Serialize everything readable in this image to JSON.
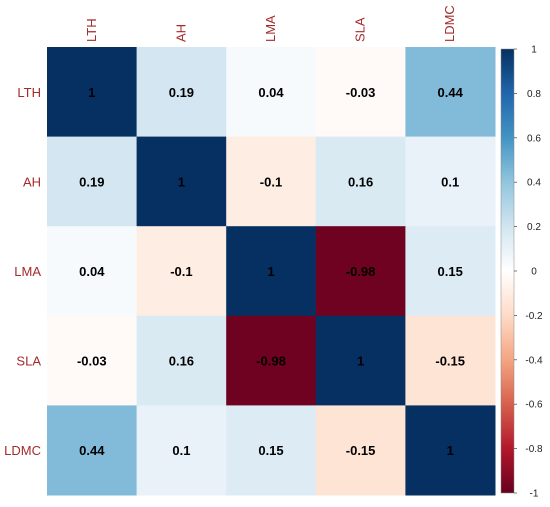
{
  "chart_data": {
    "type": "heatmap",
    "variables": [
      "LTH",
      "AH",
      "LMA",
      "SLA",
      "LDMC"
    ],
    "matrix": [
      [
        1,
        0.19,
        0.04,
        -0.03,
        0.44
      ],
      [
        0.19,
        1,
        -0.1,
        0.16,
        0.1
      ],
      [
        0.04,
        -0.1,
        1,
        -0.98,
        0.15
      ],
      [
        -0.03,
        0.16,
        -0.98,
        1,
        -0.15
      ],
      [
        0.44,
        0.1,
        0.15,
        -0.15,
        1
      ]
    ],
    "cell_labels": [
      [
        "1",
        "0.19",
        "0.04",
        "-0.03",
        "0.44"
      ],
      [
        "0.19",
        "1",
        "-0.1",
        "0.16",
        "0.1"
      ],
      [
        "0.04",
        "-0.1",
        "1",
        "-0.98",
        "0.15"
      ],
      [
        "-0.03",
        "0.16",
        "-0.98",
        "1",
        "-0.15"
      ],
      [
        "0.44",
        "0.1",
        "0.15",
        "-0.15",
        "1"
      ]
    ],
    "colorbar": {
      "range": [
        -1,
        1
      ],
      "ticks": [
        1,
        0.8,
        0.6,
        0.4,
        0.2,
        0,
        -0.2,
        -0.4,
        -0.6,
        -0.8,
        -1
      ],
      "tick_labels": [
        "1",
        "0.8",
        "0.6",
        "0.4",
        "0.2",
        "0",
        "-0.2",
        "-0.4",
        "-0.6",
        "-0.8",
        "-1"
      ],
      "colors": {
        "negative_end": "#67001f",
        "neutral": "#ffffff",
        "positive_end": "#053061"
      }
    },
    "label_color": "#a52a2a",
    "x_label_placement": "top-rotated",
    "y_label_placement": "left",
    "grid": false
  }
}
